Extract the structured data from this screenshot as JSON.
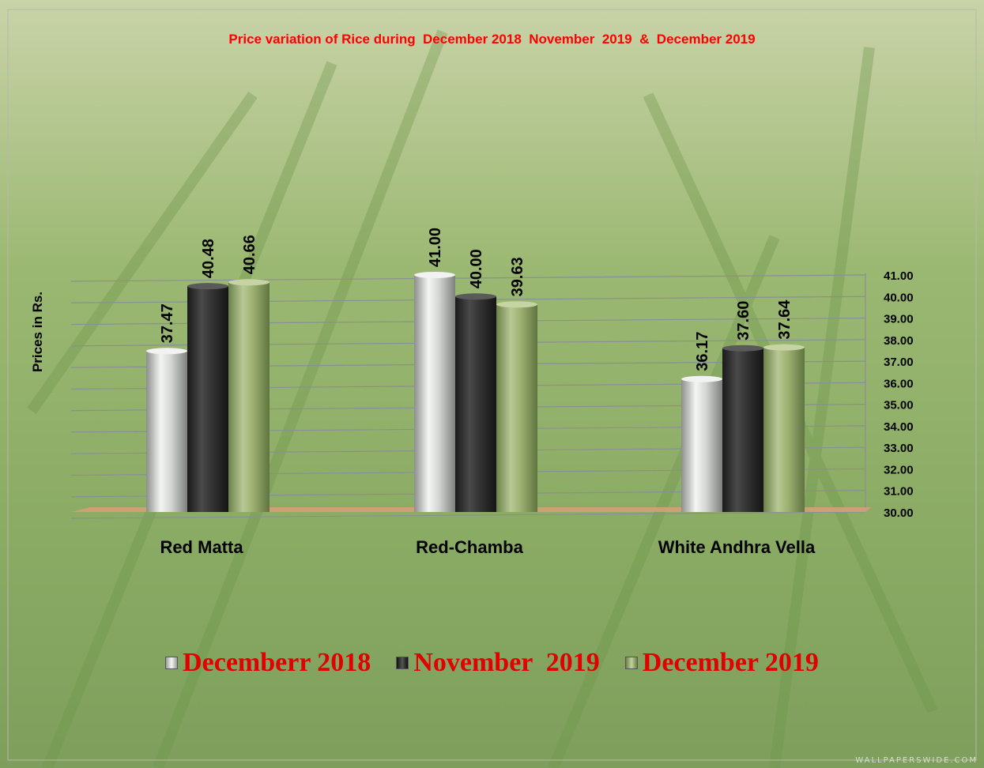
{
  "chart_data": {
    "type": "bar",
    "title": "Price variation of Rice during  December 2018  November  2019  &  December 2019",
    "ylabel": "Prices in Rs.",
    "xlabel": "",
    "categories": [
      "Red Matta",
      "Red-Chamba",
      "White Andhra Vella"
    ],
    "series": [
      {
        "name": "Decemberr 2018",
        "values": [
          37.47,
          41.0,
          36.17
        ],
        "labels": [
          "37.47",
          "41.00",
          "36.17"
        ]
      },
      {
        "name": "November  2019",
        "values": [
          40.48,
          40.0,
          37.6
        ],
        "labels": [
          "40.48",
          "40.00",
          "37.60"
        ]
      },
      {
        "name": "December 2019",
        "values": [
          40.66,
          39.63,
          37.64
        ],
        "labels": [
          "40.66",
          "39.63",
          "37.64"
        ]
      }
    ],
    "ylim": [
      30,
      41
    ],
    "yticks": [
      "30.00",
      "31.00",
      "32.00",
      "33.00",
      "34.00",
      "35.00",
      "36.00",
      "37.00",
      "38.00",
      "39.00",
      "40.00",
      "41.00"
    ],
    "y_axis_side": "right",
    "grid": true,
    "legend_position": "bottom",
    "colors": [
      "#d9dcda",
      "#3a3a3a",
      "#93a86a"
    ]
  },
  "watermark": "WALLPAPERSWIDE.COM"
}
